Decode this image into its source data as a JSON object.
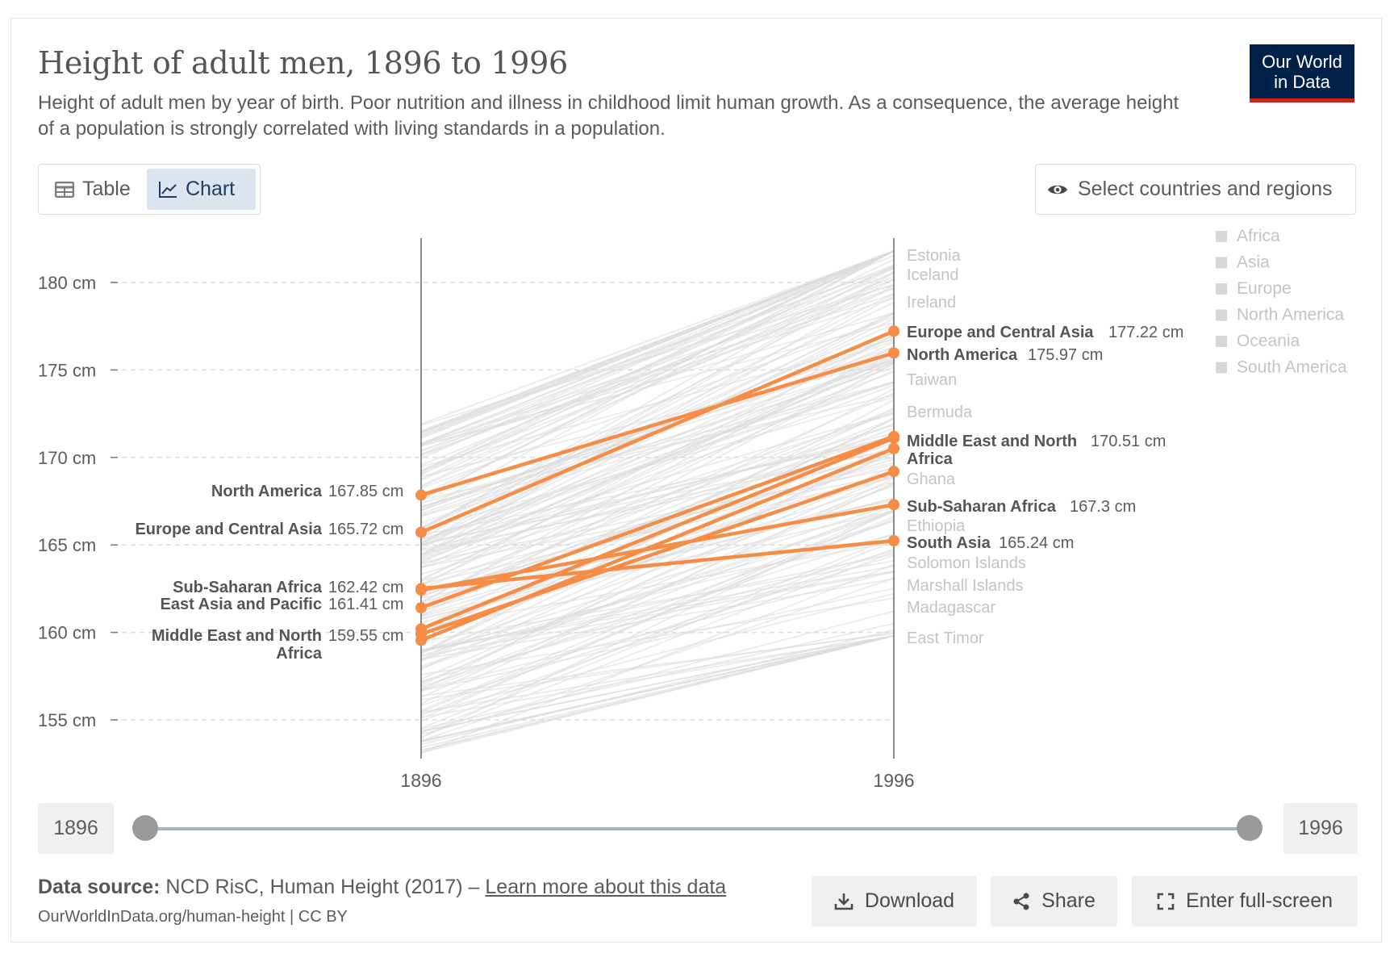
{
  "header": {
    "title": "Height of adult men, 1896 to 1996",
    "subtitle": "Height of adult men by year of birth. Poor nutrition and illness in childhood limit human growth. As a consequence, the average height of a population is strongly correlated with living standards in a population.",
    "logo_line1": "Our World",
    "logo_line2": "in Data"
  },
  "controls": {
    "tab_table": "Table",
    "tab_chart": "Chart",
    "select_label": "Select countries and regions"
  },
  "timeline": {
    "start_label": "1896",
    "end_label": "1996"
  },
  "footer": {
    "source_prefix": "Data source:",
    "source_text": "NCD RisC, Human Height (2017) –",
    "learn_more": "Learn more about this data",
    "url": "OurWorldInData.org/human-height | CC BY",
    "download": "Download",
    "share": "Share",
    "fullscreen": "Enter full-screen"
  },
  "colors": {
    "highlight": "#F68C45",
    "background_lines": "#DCDCDC",
    "logo_bg": "#002147",
    "logo_bar": "#CE261E"
  },
  "chart_data": {
    "type": "slope",
    "title": "Height of adult men, 1896 to 1996",
    "x": [
      "1896",
      "1996"
    ],
    "ylim": [
      152,
      182
    ],
    "yticks": [
      155,
      160,
      165,
      170,
      175,
      180
    ],
    "ytick_labels": [
      "155 cm",
      "160 cm",
      "165 cm",
      "170 cm",
      "175 cm",
      "180 cm"
    ],
    "unit": "cm",
    "grid": true,
    "legend": {
      "position": "top-right",
      "entries": [
        "Africa",
        "Asia",
        "Europe",
        "North America",
        "Oceania",
        "South America"
      ]
    },
    "series": [
      {
        "name": "Europe and Central Asia",
        "values": [
          165.72,
          177.22
        ],
        "label_start": "Europe and Central Asia",
        "label_end": "Europe and Central Asia",
        "value_start": "165.72 cm",
        "value_end": "177.22 cm"
      },
      {
        "name": "North America",
        "values": [
          167.85,
          175.97
        ],
        "label_start": "North America",
        "label_end": "North America",
        "value_start": "167.85 cm",
        "value_end": "175.97 cm"
      },
      {
        "name": "Middle East and North Africa",
        "values": [
          159.55,
          170.51
        ],
        "label_start": "Middle East and North Africa",
        "label_end": "Middle East and North Africa",
        "value_start": "159.55 cm",
        "value_end": "170.51 cm"
      },
      {
        "name": "Sub-Saharan Africa",
        "values": [
          162.42,
          167.3
        ],
        "label_start": "Sub-Saharan Africa",
        "label_end": "Sub-Saharan Africa",
        "value_start": "162.42 cm",
        "value_end": "167.3 cm"
      },
      {
        "name": "East Asia and Pacific",
        "values": [
          161.41,
          171.2
        ],
        "label_start": "East Asia and Pacific",
        "label_end": "",
        "value_start": "161.41 cm",
        "value_end": ""
      },
      {
        "name": "South Asia",
        "values": [
          162.5,
          165.24
        ],
        "label_start": "",
        "label_end": "South Asia",
        "value_start": "",
        "value_end": "165.24 cm"
      },
      {
        "name": "",
        "values": [
          160.2,
          171.1
        ],
        "label_start": "",
        "label_end": "",
        "value_start": "",
        "value_end": ""
      },
      {
        "name": "",
        "values": [
          159.9,
          169.2
        ],
        "label_start": "",
        "label_end": "",
        "value_start": "",
        "value_end": ""
      }
    ],
    "background_country_labels": [
      {
        "label": "Estonia",
        "value": 181.4
      },
      {
        "label": "Iceland",
        "value": 180.4
      },
      {
        "label": "Ireland",
        "value": 178.8
      },
      {
        "label": "Taiwan",
        "value": 174.6
      },
      {
        "label": "Bermuda",
        "value": 172.7
      },
      {
        "label": "Ghana",
        "value": 168.9
      },
      {
        "label": "Ethiopia",
        "value": 166.1
      },
      {
        "label": "Solomon Islands",
        "value": 164.0
      },
      {
        "label": "Marshall Islands",
        "value": 162.7
      },
      {
        "label": "Madagascar",
        "value": 161.4
      },
      {
        "label": "East Timor",
        "value": 159.7
      }
    ]
  }
}
